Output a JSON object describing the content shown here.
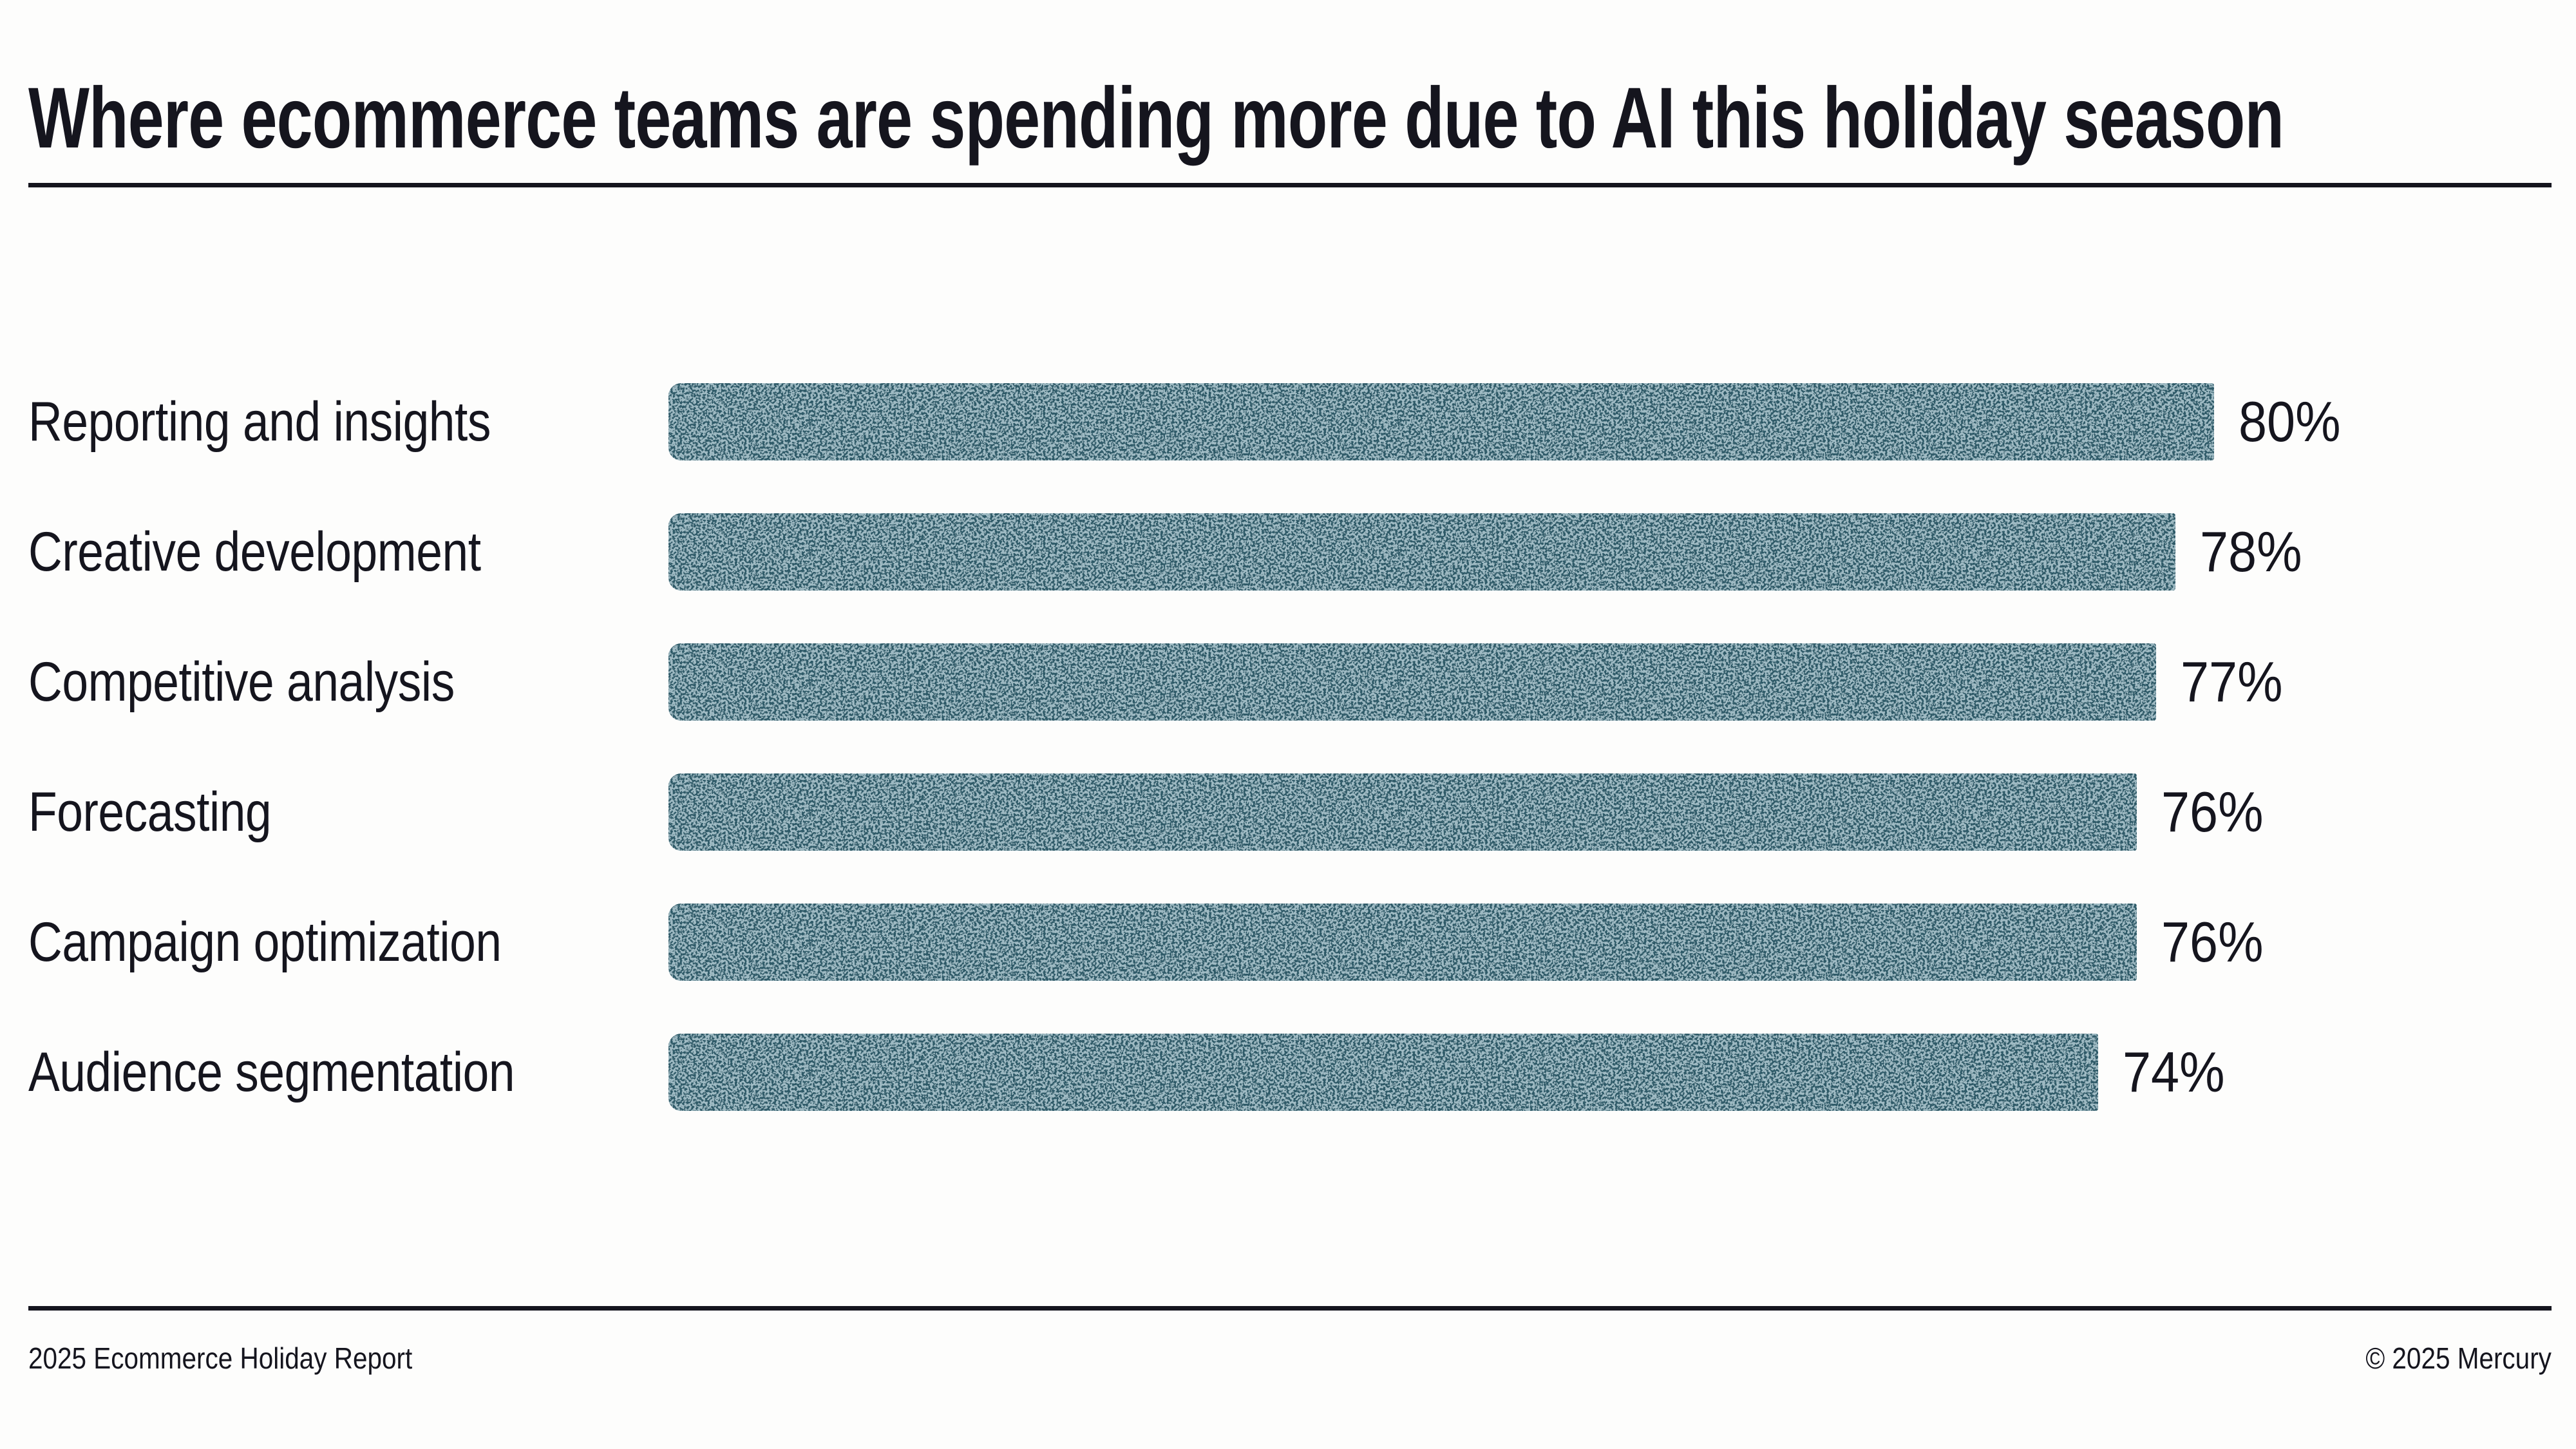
{
  "title": "Where ecommerce teams are spending more due to AI this holiday season",
  "footer": {
    "left": "2025 Ecommerce Holiday Report",
    "right": "© 2025 Mercury"
  },
  "colors": {
    "text": "#15151E",
    "background": "#FDFDFC",
    "bar_base": "#2E5A68",
    "bar_speckle": "#587F8D"
  },
  "chart_data": {
    "type": "bar",
    "orientation": "horizontal",
    "title": "Where ecommerce teams are spending more due to AI this holiday season",
    "categories": [
      "Reporting and insights",
      "Creative development",
      "Competitive analysis",
      "Forecasting",
      "Campaign optimization",
      "Audience segmentation"
    ],
    "values": [
      80,
      78,
      77,
      76,
      76,
      74
    ],
    "value_labels": [
      "80%",
      "78%",
      "77%",
      "76%",
      "76%",
      "74%"
    ],
    "unit": "%",
    "xlim": [
      0,
      100
    ],
    "grid": false,
    "legend": false,
    "bar_texture": "speckle-noise"
  }
}
